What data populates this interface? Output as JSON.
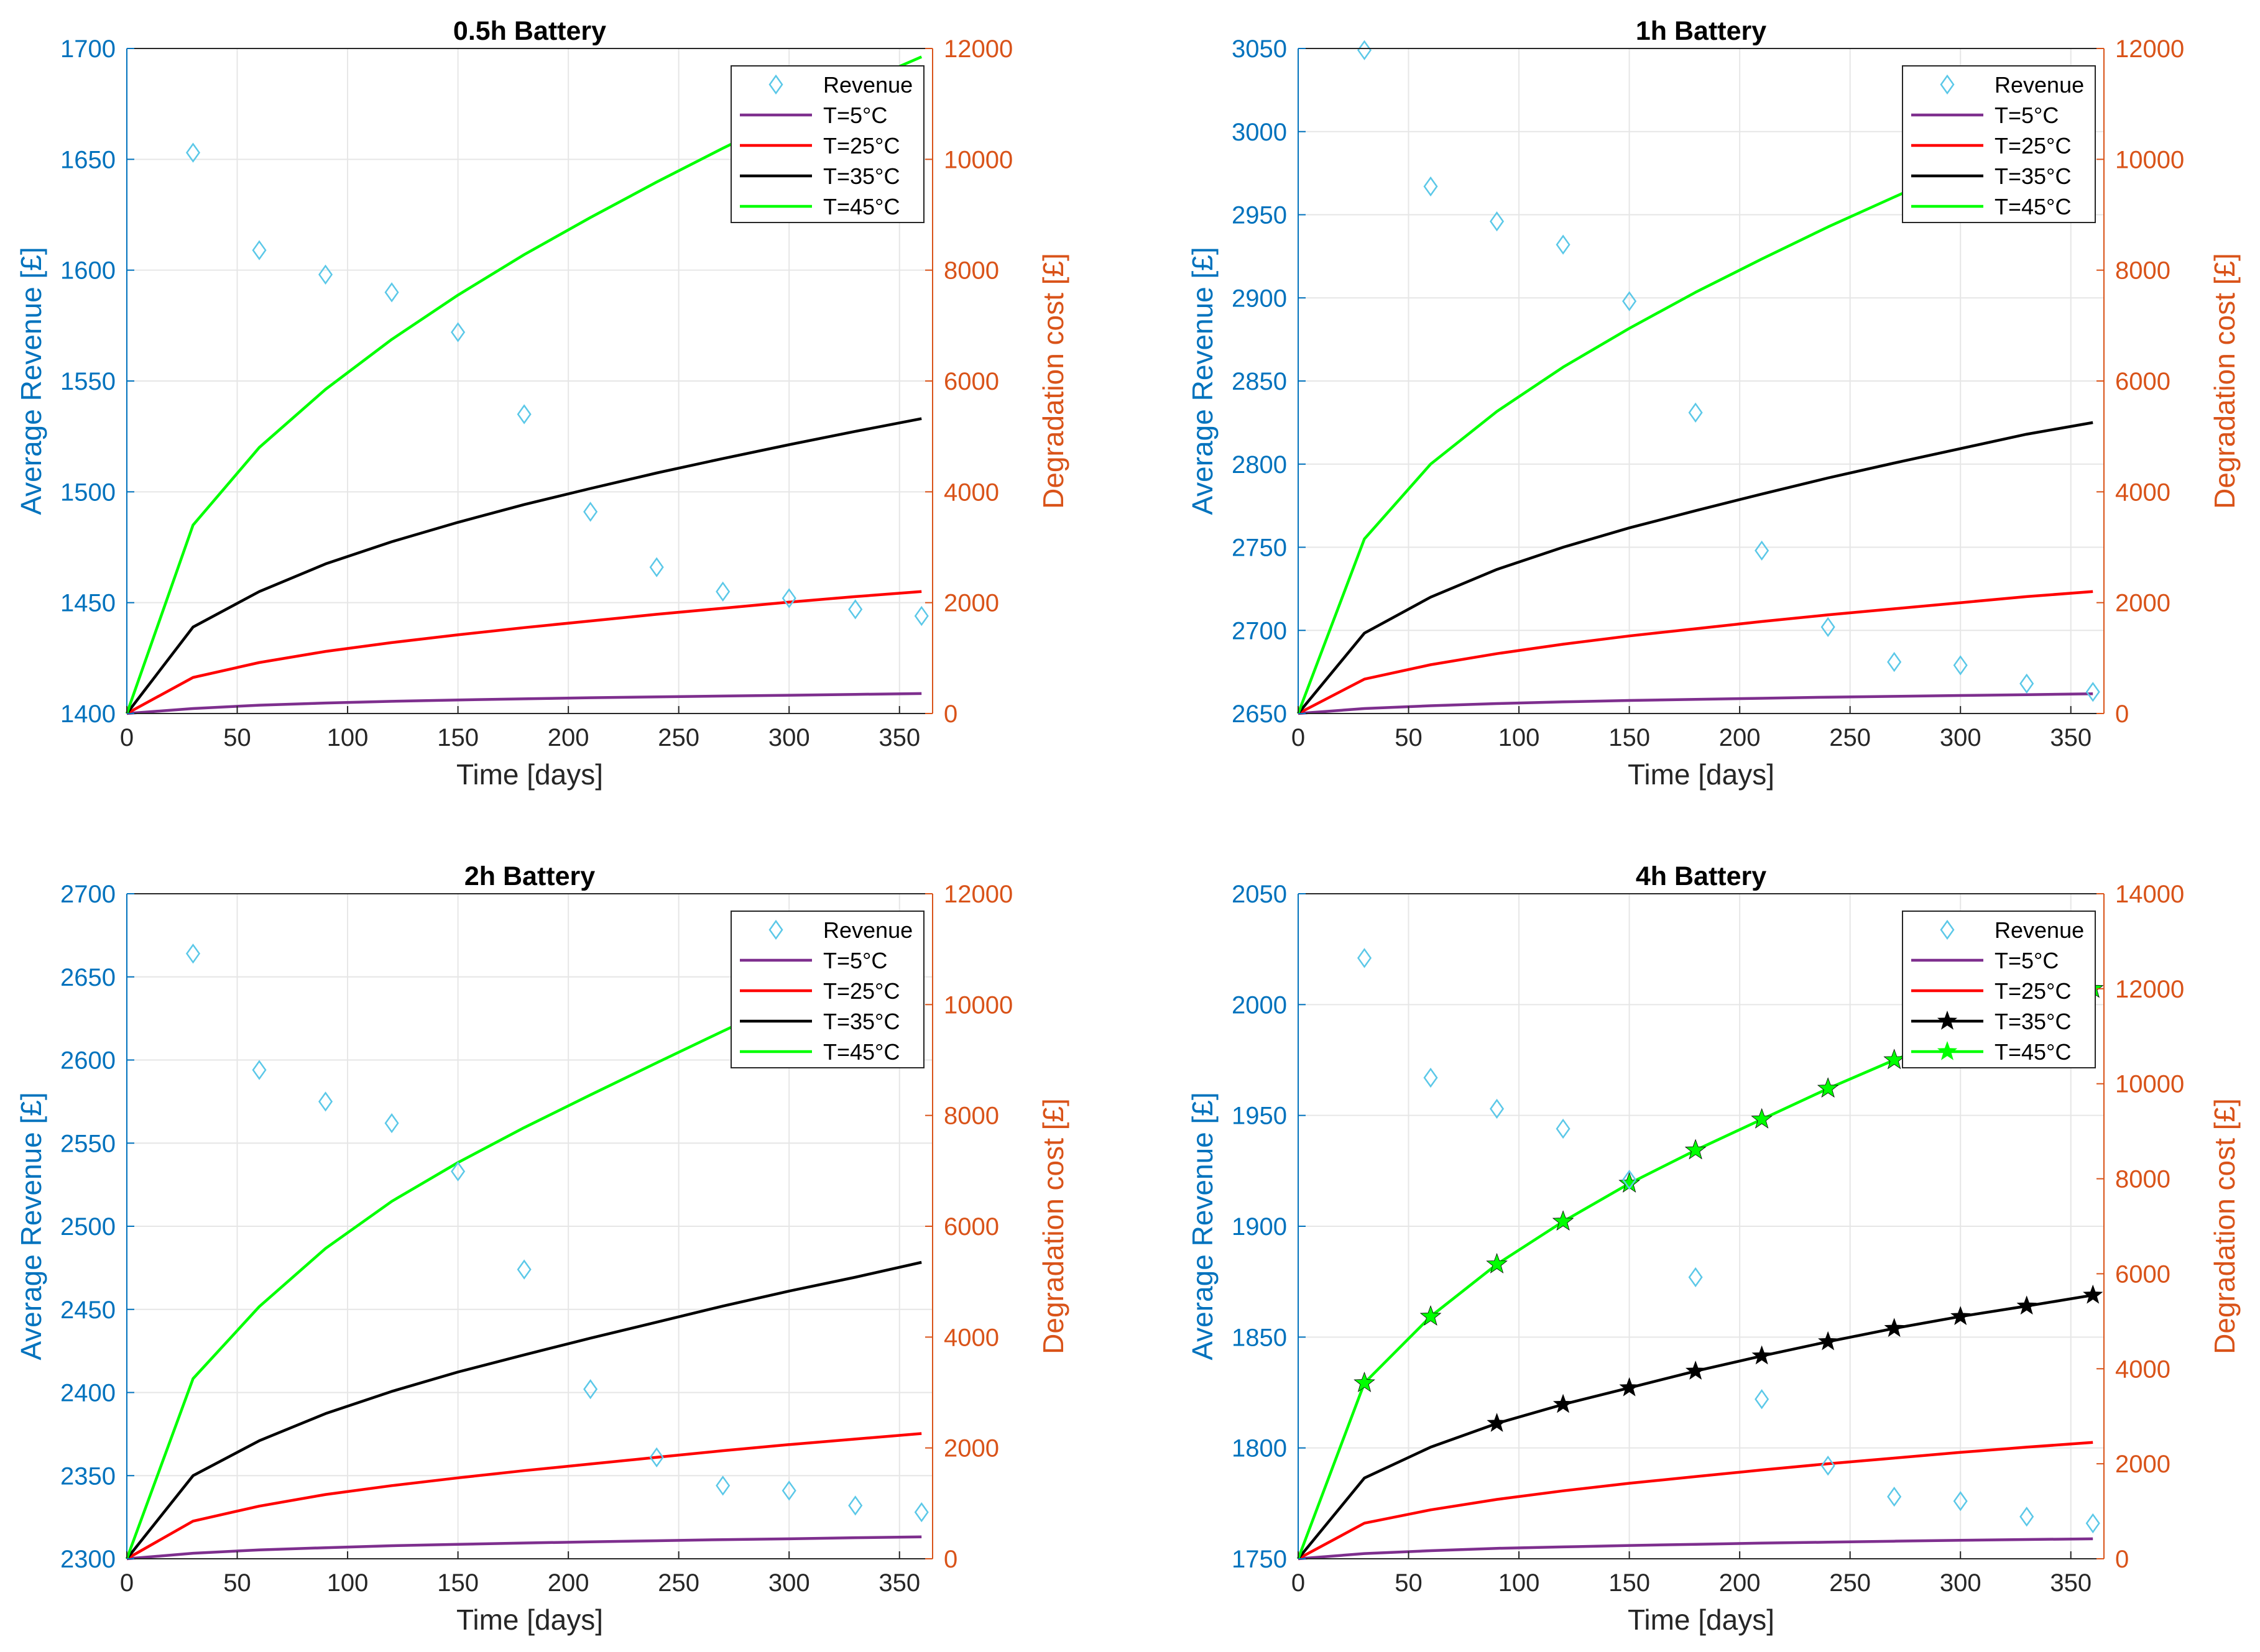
{
  "colors": {
    "left_axis": "#0072BD",
    "right_axis": "#D95319",
    "revenue_marker": "#5BC8E8",
    "t5": "#7E2F8E",
    "t25": "#FF0000",
    "t35": "#000000",
    "t45": "#00FF00",
    "grid": "#E6E6E6",
    "frame": "#262626"
  },
  "chart_data": [
    {
      "type": "line",
      "title": "0.5h Battery",
      "xlabel": "Time [days]",
      "ylabel_left": "Average Revenue [£]",
      "ylabel_right": "Degradation cost [£]",
      "xlim": [
        0,
        365
      ],
      "xticks": [
        0,
        50,
        100,
        150,
        200,
        250,
        300,
        350
      ],
      "ylim_left": [
        1400,
        1700
      ],
      "yticks_left": [
        1400,
        1450,
        1500,
        1550,
        1600,
        1650,
        1700
      ],
      "ylim_right": [
        0,
        12000
      ],
      "yticks_right": [
        0,
        2000,
        4000,
        6000,
        8000,
        10000,
        12000
      ],
      "grid": true,
      "legend_position": "top-right",
      "legend": [
        "Revenue",
        "T=5°C",
        "T=25°C",
        "T=35°C",
        "T=45°C"
      ],
      "revenue": {
        "name": "Revenue",
        "x": [
          30,
          60,
          90,
          120,
          150,
          180,
          210,
          240,
          270,
          300,
          330,
          360
        ],
        "values": [
          1653,
          1609,
          1598,
          1590,
          1572,
          1535,
          1491,
          1466,
          1455,
          1452,
          1447,
          1444
        ]
      },
      "series": [
        {
          "name": "T=5°C",
          "color_key": "t5",
          "markers": false,
          "x": [
            0,
            30,
            60,
            90,
            120,
            150,
            180,
            210,
            240,
            270,
            300,
            330,
            360
          ],
          "values": [
            0,
            90,
            150,
            190,
            220,
            245,
            265,
            285,
            300,
            315,
            330,
            345,
            360
          ]
        },
        {
          "name": "T=25°C",
          "color_key": "t25",
          "markers": false,
          "x": [
            0,
            30,
            60,
            90,
            120,
            150,
            180,
            210,
            240,
            270,
            300,
            330,
            360
          ],
          "values": [
            0,
            650,
            920,
            1120,
            1280,
            1420,
            1550,
            1670,
            1790,
            1900,
            2010,
            2110,
            2200
          ]
        },
        {
          "name": "T=35°C",
          "color_key": "t35",
          "markers": false,
          "x": [
            0,
            30,
            60,
            90,
            120,
            150,
            180,
            210,
            240,
            270,
            300,
            330,
            360
          ],
          "values": [
            0,
            1560,
            2200,
            2700,
            3100,
            3450,
            3770,
            4060,
            4340,
            4600,
            4850,
            5090,
            5320
          ]
        },
        {
          "name": "T=45°C",
          "color_key": "t45",
          "markers": false,
          "x": [
            0,
            30,
            60,
            90,
            120,
            150,
            180,
            210,
            240,
            270,
            300,
            330,
            360
          ],
          "values": [
            0,
            3400,
            4800,
            5850,
            6750,
            7550,
            8280,
            8950,
            9590,
            10200,
            10780,
            11330,
            11850
          ]
        }
      ]
    },
    {
      "type": "line",
      "title": "1h Battery",
      "xlabel": "Time [days]",
      "ylabel_left": "Average Revenue [£]",
      "ylabel_right": "Degradation cost [£]",
      "xlim": [
        0,
        365
      ],
      "xticks": [
        0,
        50,
        100,
        150,
        200,
        250,
        300,
        350
      ],
      "ylim_left": [
        2650,
        3050
      ],
      "yticks_left": [
        2650,
        2700,
        2750,
        2800,
        2850,
        2900,
        2950,
        3000,
        3050
      ],
      "ylim_right": [
        0,
        12000
      ],
      "yticks_right": [
        0,
        2000,
        4000,
        6000,
        8000,
        10000,
        12000
      ],
      "grid": true,
      "legend_position": "top-right",
      "legend": [
        "Revenue",
        "T=5°C",
        "T=25°C",
        "T=35°C",
        "T=45°C"
      ],
      "revenue": {
        "name": "Revenue",
        "x": [
          30,
          60,
          90,
          120,
          150,
          180,
          210,
          240,
          270,
          300,
          330,
          360
        ],
        "values": [
          3049,
          2967,
          2946,
          2932,
          2898,
          2831,
          2748,
          2702,
          2681,
          2679,
          2668,
          2663
        ]
      },
      "series": [
        {
          "name": "T=5°C",
          "color_key": "t5",
          "markers": false,
          "x": [
            0,
            30,
            60,
            90,
            120,
            150,
            180,
            210,
            240,
            270,
            300,
            330,
            360
          ],
          "values": [
            0,
            90,
            140,
            180,
            210,
            235,
            255,
            275,
            295,
            310,
            325,
            340,
            355
          ]
        },
        {
          "name": "T=25°C",
          "color_key": "t25",
          "markers": false,
          "x": [
            0,
            30,
            60,
            90,
            120,
            150,
            180,
            210,
            240,
            270,
            300,
            330,
            360
          ],
          "values": [
            0,
            620,
            880,
            1080,
            1250,
            1400,
            1530,
            1660,
            1780,
            1890,
            2000,
            2110,
            2200
          ]
        },
        {
          "name": "T=35°C",
          "color_key": "t35",
          "markers": false,
          "x": [
            0,
            30,
            60,
            90,
            120,
            150,
            180,
            210,
            240,
            270,
            300,
            330,
            360
          ],
          "values": [
            0,
            1450,
            2100,
            2600,
            3000,
            3350,
            3660,
            3960,
            4250,
            4520,
            4780,
            5040,
            5250
          ]
        },
        {
          "name": "T=45°C",
          "color_key": "t45",
          "markers": false,
          "x": [
            0,
            30,
            60,
            90,
            120,
            150,
            180,
            210,
            240,
            270,
            300,
            330,
            360
          ],
          "values": [
            0,
            3150,
            4500,
            5450,
            6250,
            6950,
            7600,
            8200,
            8780,
            9320,
            9850,
            10350,
            10850
          ]
        }
      ]
    },
    {
      "type": "line",
      "title": "2h Battery",
      "xlabel": "Time [days]",
      "ylabel_left": "Average Revenue [£]",
      "ylabel_right": "Degradation cost [£]",
      "xlim": [
        0,
        365
      ],
      "xticks": [
        0,
        50,
        100,
        150,
        200,
        250,
        300,
        350
      ],
      "ylim_left": [
        2300,
        2700
      ],
      "yticks_left": [
        2300,
        2350,
        2400,
        2450,
        2500,
        2550,
        2600,
        2650,
        2700
      ],
      "ylim_right": [
        0,
        12000
      ],
      "yticks_right": [
        0,
        2000,
        4000,
        6000,
        8000,
        10000,
        12000
      ],
      "grid": true,
      "legend_position": "top-right",
      "legend": [
        "Revenue",
        "T=5°C",
        "T=25°C",
        "T=35°C",
        "T=45°C"
      ],
      "revenue": {
        "name": "Revenue",
        "x": [
          30,
          60,
          90,
          120,
          150,
          180,
          210,
          240,
          270,
          300,
          330,
          360
        ],
        "values": [
          2664,
          2594,
          2575,
          2562,
          2533,
          2474,
          2402,
          2361,
          2344,
          2341,
          2332,
          2328
        ]
      },
      "series": [
        {
          "name": "T=5°C",
          "color_key": "t5",
          "markers": false,
          "x": [
            0,
            30,
            60,
            90,
            120,
            150,
            180,
            210,
            240,
            270,
            300,
            330,
            360
          ],
          "values": [
            0,
            100,
            160,
            200,
            235,
            260,
            285,
            305,
            325,
            345,
            360,
            380,
            395
          ]
        },
        {
          "name": "T=25°C",
          "color_key": "t25",
          "markers": false,
          "x": [
            0,
            30,
            60,
            90,
            120,
            150,
            180,
            210,
            240,
            270,
            300,
            330,
            360
          ],
          "values": [
            0,
            680,
            950,
            1160,
            1320,
            1460,
            1590,
            1710,
            1830,
            1950,
            2060,
            2160,
            2260
          ]
        },
        {
          "name": "T=35°C",
          "color_key": "t35",
          "markers": false,
          "x": [
            0,
            30,
            60,
            90,
            120,
            150,
            180,
            210,
            240,
            270,
            300,
            330,
            360
          ],
          "values": [
            0,
            1500,
            2130,
            2620,
            3020,
            3370,
            3680,
            3980,
            4270,
            4560,
            4830,
            5080,
            5350
          ]
        },
        {
          "name": "T=45°C",
          "color_key": "t45",
          "markers": false,
          "x": [
            0,
            30,
            60,
            90,
            120,
            150,
            180,
            210,
            240,
            270,
            300,
            330,
            360
          ],
          "values": [
            0,
            3250,
            4550,
            5600,
            6450,
            7150,
            7780,
            8370,
            8950,
            9520,
            10080,
            10620,
            11100
          ]
        }
      ]
    },
    {
      "type": "line",
      "title": "4h Battery",
      "xlabel": "Time [days]",
      "ylabel_left": "Average Revenue [£]",
      "ylabel_right": "Degradation cost [£]",
      "xlim": [
        0,
        365
      ],
      "xticks": [
        0,
        50,
        100,
        150,
        200,
        250,
        300,
        350
      ],
      "ylim_left": [
        1750,
        2050
      ],
      "yticks_left": [
        1750,
        1800,
        1850,
        1900,
        1950,
        2000,
        2050
      ],
      "ylim_right": [
        0,
        14000
      ],
      "yticks_right": [
        0,
        2000,
        4000,
        6000,
        8000,
        10000,
        12000,
        14000
      ],
      "grid": true,
      "legend_position": "top-right",
      "legend": [
        "Revenue",
        "T=5°C",
        "T=25°C",
        "T=35°C",
        "T=45°C"
      ],
      "revenue": {
        "name": "Revenue",
        "x": [
          30,
          60,
          90,
          120,
          150,
          180,
          210,
          240,
          270,
          300,
          330,
          360
        ],
        "values": [
          2021,
          1967,
          1953,
          1944,
          1921,
          1877,
          1822,
          1792,
          1778,
          1776,
          1769,
          1766
        ]
      },
      "series": [
        {
          "name": "T=5°C",
          "color_key": "t5",
          "markers": false,
          "x": [
            0,
            30,
            60,
            90,
            120,
            150,
            180,
            210,
            240,
            270,
            300,
            330,
            360
          ],
          "values": [
            0,
            110,
            170,
            220,
            250,
            280,
            305,
            330,
            350,
            370,
            390,
            405,
            420
          ]
        },
        {
          "name": "T=25°C",
          "color_key": "t25",
          "markers": false,
          "x": [
            0,
            30,
            60,
            90,
            120,
            150,
            180,
            210,
            240,
            270,
            300,
            330,
            360
          ],
          "values": [
            0,
            750,
            1030,
            1250,
            1430,
            1590,
            1730,
            1870,
            2000,
            2120,
            2240,
            2350,
            2450
          ]
        },
        {
          "name": "T=35°C",
          "color_key": "t35",
          "markers": true,
          "marker_x": [
            90,
            120,
            150,
            180,
            210,
            240,
            270,
            300,
            330,
            360
          ],
          "x": [
            0,
            30,
            60,
            90,
            120,
            150,
            180,
            210,
            240,
            270,
            300,
            330,
            360
          ],
          "values": [
            0,
            1700,
            2350,
            2850,
            3250,
            3600,
            3950,
            4270,
            4570,
            4850,
            5100,
            5320,
            5550
          ]
        },
        {
          "name": "T=45°C",
          "color_key": "t45",
          "markers": true,
          "marker_x": [
            30,
            60,
            90,
            120,
            150,
            180,
            210,
            240,
            270,
            300,
            330,
            360
          ],
          "x": [
            0,
            30,
            60,
            90,
            120,
            150,
            180,
            210,
            240,
            270,
            300,
            330,
            360
          ],
          "values": [
            0,
            3700,
            5100,
            6200,
            7100,
            7900,
            8600,
            9250,
            9900,
            10500,
            11050,
            11550,
            12000
          ]
        }
      ]
    }
  ]
}
